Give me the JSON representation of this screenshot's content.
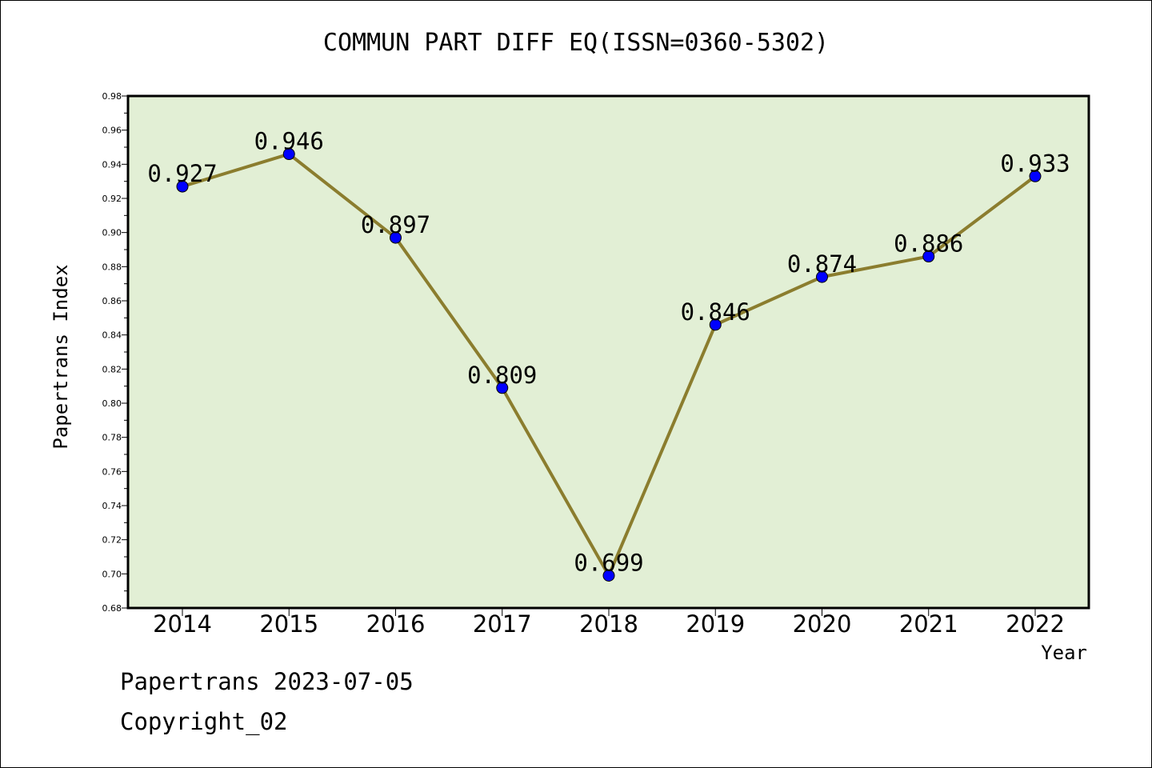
{
  "chart_data": {
    "type": "line",
    "title": "COMMUN PART DIFF EQ(ISSN=0360-5302)",
    "xlabel": "Year",
    "ylabel": "Papertrans Index",
    "categories": [
      "2014",
      "2015",
      "2016",
      "2017",
      "2018",
      "2019",
      "2020",
      "2021",
      "2022"
    ],
    "series": [
      {
        "values": [
          0.927,
          0.946,
          0.897,
          0.809,
          0.699,
          0.846,
          0.874,
          0.886,
          0.933
        ],
        "data_labels": [
          "0.927",
          "0.946",
          "0.897",
          "0.809",
          "0.699",
          "0.846",
          "0.874",
          "0.886",
          "0.933"
        ]
      }
    ],
    "ylim": [
      0.68,
      0.98
    ],
    "yticks": [
      "0.68",
      "0.70",
      "0.72",
      "0.74",
      "0.76",
      "0.78",
      "0.80",
      "0.82",
      "0.84",
      "0.86",
      "0.88",
      "0.90",
      "0.92",
      "0.94",
      "0.96",
      "0.98"
    ],
    "grid": false,
    "legend": "none",
    "colors": {
      "plot_background": "#e2efd5",
      "line": "#8b7d2e",
      "marker": "#0000ff",
      "axis": "#000000"
    }
  },
  "footer": {
    "line1": "Papertrans 2023-07-05",
    "line2": "Copyright_02"
  }
}
